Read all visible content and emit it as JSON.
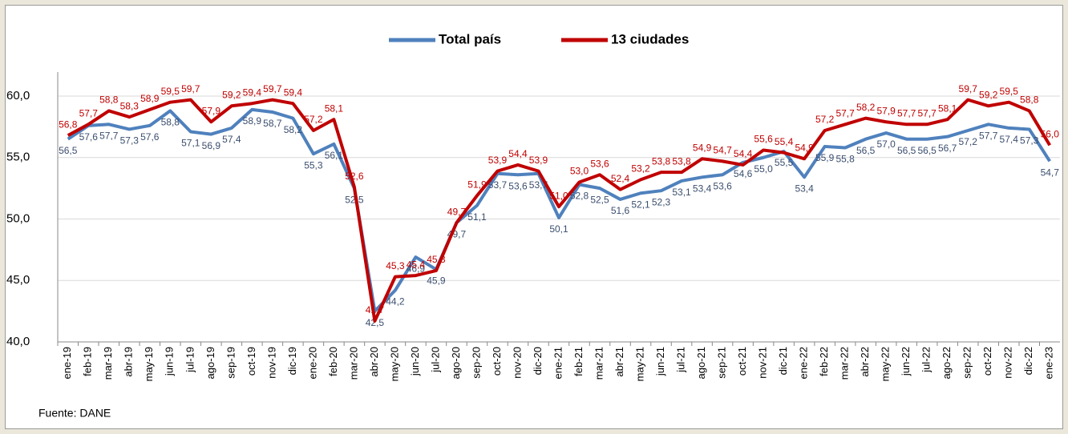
{
  "chart_data": {
    "type": "line",
    "categories": [
      "ene-19",
      "feb-19",
      "mar-19",
      "abr-19",
      "may-19",
      "jun-19",
      "jul-19",
      "ago-19",
      "sep-19",
      "oct-19",
      "nov-19",
      "dic-19",
      "ene-20",
      "feb-20",
      "mar-20",
      "abr-20",
      "may-20",
      "jun-20",
      "jul-20",
      "ago-20",
      "sep-20",
      "oct-20",
      "nov-20",
      "dic-20",
      "ene-21",
      "feb-21",
      "mar-21",
      "abr-21",
      "may-21",
      "jun-21",
      "jul-21",
      "ago-21",
      "sep-21",
      "oct-21",
      "nov-21",
      "dic-21",
      "ene-22",
      "feb-22",
      "mar-22",
      "abr-22",
      "may-22",
      "jun-22",
      "jul-22",
      "ago-22",
      "sep-22",
      "oct-22",
      "nov-22",
      "dic-22",
      "ene-23"
    ],
    "series": [
      {
        "name": "Total país",
        "color": "#4f81bd",
        "values": [
          56.5,
          57.6,
          57.7,
          57.3,
          57.6,
          58.8,
          57.1,
          56.9,
          57.4,
          58.9,
          58.7,
          58.2,
          55.3,
          56.1,
          52.5,
          42.5,
          44.2,
          46.9,
          45.9,
          49.7,
          51.1,
          53.7,
          53.6,
          53.7,
          50.1,
          52.8,
          52.5,
          51.6,
          52.1,
          52.3,
          53.1,
          53.4,
          53.6,
          54.6,
          55.0,
          55.5,
          53.4,
          55.9,
          55.8,
          56.5,
          57.0,
          56.5,
          56.5,
          56.7,
          57.2,
          57.7,
          57.4,
          57.3,
          54.7
        ],
        "value_labels": [
          "56,5",
          "57,6",
          "57,7",
          "57,3",
          "57,6",
          "58,8",
          "57,1",
          "56,9",
          "57,4",
          "58,9",
          "58,7",
          "58,2",
          "55,3",
          "56,1",
          "52,5",
          "42,5",
          "44,2",
          "46,9",
          "45,9",
          "49,7",
          "51,1",
          "53,7",
          "53,6",
          "53,7",
          "50,1",
          "52,8",
          "52,5",
          "51,6",
          "52,1",
          "52,3",
          "53,1",
          "53,4",
          "53,6",
          "54,6",
          "55,0",
          "55,5",
          "53,4",
          "55,9",
          "55,8",
          "56,5",
          "57,0",
          "56,5",
          "56,5",
          "56,7",
          "57,2",
          "57,7",
          "57,4",
          "57,3",
          "54,7"
        ]
      },
      {
        "name": "13 ciudades",
        "color": "#c00000",
        "values": [
          56.8,
          57.7,
          58.8,
          58.3,
          58.9,
          59.5,
          59.7,
          57.9,
          59.2,
          59.4,
          59.7,
          59.4,
          57.2,
          58.1,
          52.6,
          41.7,
          45.3,
          45.4,
          45.8,
          49.7,
          51.9,
          53.9,
          54.4,
          53.9,
          51.0,
          53.0,
          53.6,
          52.4,
          53.2,
          53.8,
          53.8,
          54.9,
          54.7,
          54.4,
          55.6,
          55.4,
          54.9,
          57.2,
          57.7,
          58.2,
          57.9,
          57.7,
          57.7,
          58.1,
          59.7,
          59.2,
          59.5,
          58.8,
          56.0
        ],
        "value_labels": [
          "56,8",
          "57,7",
          "58,8",
          "58,3",
          "58,9",
          "59,5",
          "59,7",
          "57,9",
          "59,2",
          "59,4",
          "59,7",
          "59,4",
          "57,2",
          "58,1",
          "52,6",
          "41,7",
          "45,3",
          "45,4",
          "45,8",
          "49,7",
          "51,9",
          "53,9",
          "54,4",
          "53,9",
          "51,0",
          "53,0",
          "53,6",
          "52,4",
          "53,2",
          "53,8",
          "53,8",
          "54,9",
          "54,7",
          "54,4",
          "55,6",
          "55,4",
          "54,9",
          "57,2",
          "57,7",
          "58,2",
          "57,9",
          "57,7",
          "57,7",
          "58,1",
          "59,7",
          "59,2",
          "59,5",
          "58,8",
          "56,0"
        ]
      }
    ],
    "ylim": [
      40,
      60
    ],
    "yticks": [
      {
        "value": 40,
        "label": "40,0"
      },
      {
        "value": 45,
        "label": "45,0"
      },
      {
        "value": 50,
        "label": "50,0"
      },
      {
        "value": 55,
        "label": "55,0"
      },
      {
        "value": 60,
        "label": "60,0"
      }
    ],
    "grid": true,
    "legend": "top",
    "source": "Fuente: DANE"
  }
}
